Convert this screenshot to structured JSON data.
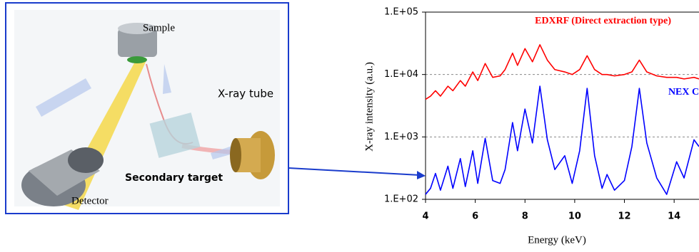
{
  "diagram": {
    "labels": {
      "sample": "Sample",
      "tube": "X-ray tube",
      "target": "Secondary target",
      "detector": "Detector"
    }
  },
  "chart_data": {
    "type": "line",
    "x_label": "Energy (keV)",
    "y_label": "X-ray intensity (a.u.)",
    "x": [
      4.0,
      4.2,
      4.4,
      4.6,
      4.9,
      5.1,
      5.4,
      5.6,
      5.9,
      6.1,
      6.4,
      6.7,
      7.0,
      7.2,
      7.5,
      7.7,
      8.0,
      8.3,
      8.6,
      8.9,
      9.2,
      9.6,
      9.9,
      10.2,
      10.5,
      10.8,
      11.1,
      11.3,
      11.6,
      12.0,
      12.3,
      12.6,
      12.9,
      13.3,
      13.7,
      14.1,
      14.4,
      14.8,
      15.0
    ],
    "series": [
      {
        "name": "EDXRF (Direct extraction type)",
        "color": "#ff0000",
        "values": [
          4000,
          4500,
          5500,
          4500,
          6500,
          5500,
          8000,
          6500,
          11000,
          8000,
          15000,
          9000,
          9500,
          12000,
          22000,
          14000,
          26000,
          16000,
          30000,
          17000,
          12000,
          11000,
          10000,
          12000,
          20000,
          12000,
          10000,
          10000,
          9500,
          10000,
          11000,
          17000,
          11000,
          9500,
          9000,
          9000,
          8500,
          9000,
          8500
        ]
      },
      {
        "name": "NEX CG",
        "color": "#0000ff",
        "values": [
          120,
          150,
          260,
          140,
          340,
          150,
          450,
          160,
          600,
          180,
          950,
          200,
          180,
          300,
          1700,
          600,
          2800,
          800,
          6500,
          900,
          300,
          500,
          180,
          600,
          6000,
          500,
          150,
          250,
          140,
          200,
          700,
          6000,
          800,
          220,
          120,
          400,
          220,
          900,
          700
        ]
      }
    ],
    "xlim": [
      4,
      15
    ],
    "xticks": [
      4,
      6,
      8,
      10,
      12,
      14
    ],
    "ylim": [
      100,
      100000
    ],
    "log_y": true,
    "grid": true,
    "yticks": [
      {
        "value": 100,
        "label": "1.E+02"
      },
      {
        "value": 1000,
        "label": "1.E+03"
      },
      {
        "value": 10000,
        "label": "1.E+04"
      },
      {
        "value": 100000,
        "label": "1.E+05"
      }
    ]
  }
}
